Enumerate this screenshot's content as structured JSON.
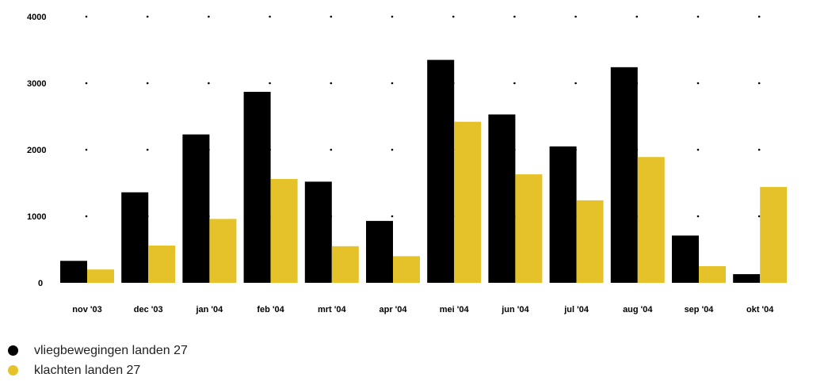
{
  "chart_data": {
    "type": "bar",
    "categories": [
      "nov '03",
      "dec '03",
      "jan '04",
      "feb '04",
      "mrt '04",
      "apr '04",
      "mei '04",
      "jun '04",
      "jul '04",
      "aug '04",
      "sep '04",
      "okt '04"
    ],
    "series": [
      {
        "name": "vliegbewegingen landen 27",
        "color": "#000000",
        "values": [
          330,
          1360,
          2230,
          2870,
          1520,
          930,
          3350,
          2530,
          2050,
          3240,
          710,
          130
        ]
      },
      {
        "name": "klachten landen 27",
        "color": "#e6c22a",
        "values": [
          200,
          560,
          960,
          1560,
          550,
          400,
          2420,
          1630,
          1240,
          1890,
          250,
          1440
        ]
      }
    ],
    "yticks": [
      "0",
      "1000",
      "2000",
      "3000",
      "4000"
    ],
    "ylim": [
      0,
      4000
    ],
    "grid": "dotted",
    "legend_position": "bottom-left"
  }
}
